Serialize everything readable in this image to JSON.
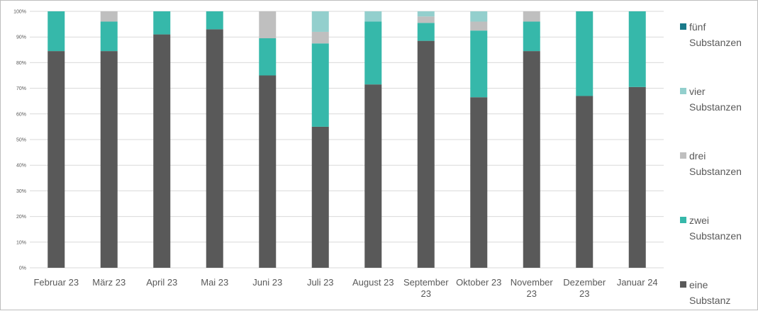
{
  "chart_data": {
    "type": "bar",
    "stacked": true,
    "percent": true,
    "categories": [
      [
        "Februar 23"
      ],
      [
        "März 23"
      ],
      [
        "April 23"
      ],
      [
        "Mai 23"
      ],
      [
        "Juni 23"
      ],
      [
        "Juli 23"
      ],
      [
        "August 23"
      ],
      [
        "September",
        "23"
      ],
      [
        "Oktober 23"
      ],
      [
        "November",
        "23"
      ],
      [
        "Dezember",
        "23"
      ],
      [
        "Januar 24"
      ]
    ],
    "series": [
      {
        "name": "eine Substanz",
        "legend_lines": [
          "eine",
          "Substanz"
        ],
        "color": "#595959",
        "values": [
          84.5,
          84.5,
          91,
          93,
          75,
          55,
          71.5,
          88.5,
          66.5,
          84.5,
          67,
          70.5
        ]
      },
      {
        "name": "zwei Substanzen",
        "legend_lines": [
          "zwei",
          "Substanzen"
        ],
        "color": "#36b8aa",
        "values": [
          15.5,
          11.5,
          9,
          7,
          14.5,
          32.5,
          24.5,
          7,
          26,
          11.5,
          33,
          29.5
        ]
      },
      {
        "name": "drei Substanzen",
        "legend_lines": [
          "drei",
          "Substanzen"
        ],
        "color": "#bfbfbf",
        "values": [
          0,
          4,
          0,
          0,
          10.5,
          4.5,
          0,
          2.5,
          3.5,
          4,
          0,
          0
        ]
      },
      {
        "name": "vier Substanzen",
        "legend_lines": [
          "vier",
          "Substanzen"
        ],
        "color": "#93cfcd",
        "values": [
          0,
          0,
          0,
          0,
          0,
          8,
          4,
          2,
          4,
          0,
          0,
          0
        ]
      },
      {
        "name": "fünf Substanzen",
        "legend_lines": [
          "fünf",
          "Substanzen"
        ],
        "color": "#1a7a8a",
        "values": [
          0,
          0,
          0,
          0,
          0,
          0,
          0,
          0,
          0,
          0,
          0,
          0
        ]
      }
    ],
    "yticks": [
      "0%",
      "10%",
      "20%",
      "30%",
      "40%",
      "50%",
      "60%",
      "70%",
      "80%",
      "90%",
      "100%"
    ],
    "ylim": [
      0,
      100
    ],
    "grid": true,
    "legend_position": "right",
    "title": "",
    "xlabel": "",
    "ylabel": ""
  }
}
